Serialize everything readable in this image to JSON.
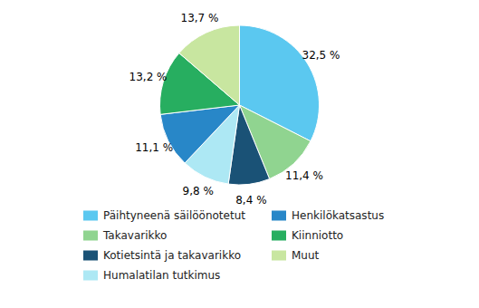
{
  "chart_data": {
    "type": "pie",
    "categories": [
      "Päihtyneenä säilöönotetut",
      "Takavarikko",
      "Kotietsintä ja takavarikko",
      "Humalatilan tutkimus",
      "Henkilökatsastus",
      "Kiinniotto",
      "Muut"
    ],
    "values": [
      32.5,
      11.4,
      8.4,
      9.8,
      11.1,
      13.2,
      13.7
    ],
    "value_labels": [
      "32,5 %",
      "11,4 %",
      "8,4 %",
      "9,8 %",
      "11,1 %",
      "13,2 %",
      "13,7 %"
    ],
    "colors": [
      "#5BC8F0",
      "#90D490",
      "#1A5276",
      "#ADE8F4",
      "#2887C8",
      "#27AE60",
      "#C8E6A0"
    ],
    "data_labels": true,
    "legend": "bottom"
  }
}
